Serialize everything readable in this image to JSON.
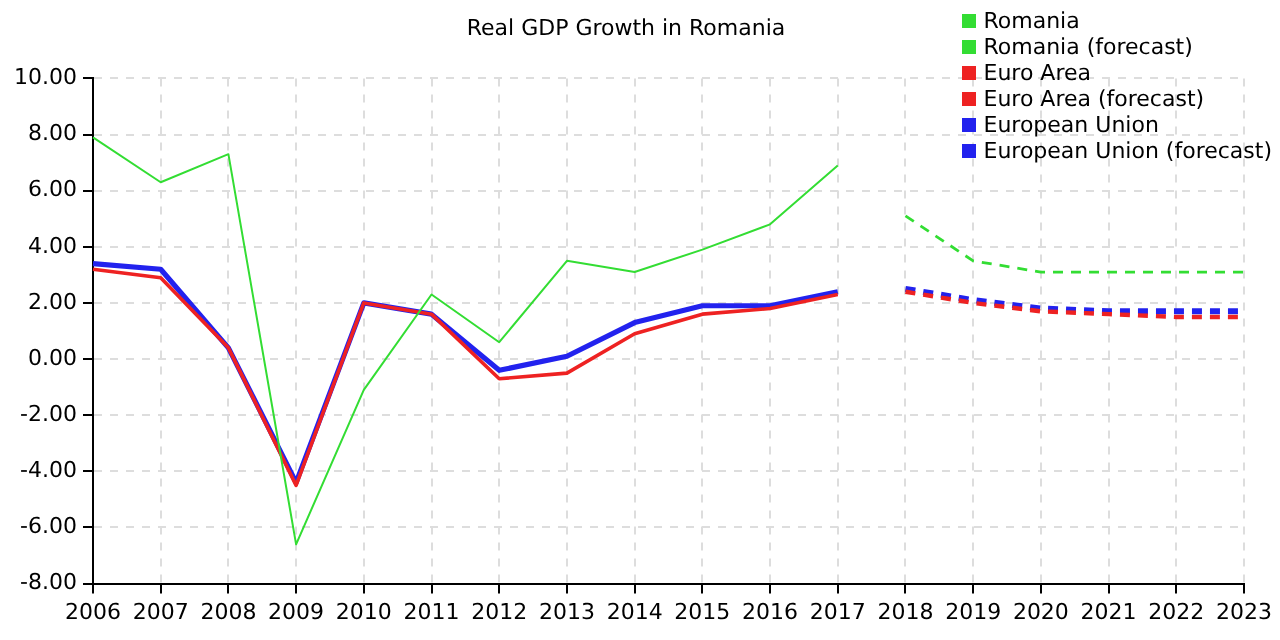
{
  "chart_data": {
    "type": "line",
    "title": "Real GDP Growth in Romania",
    "categories": [
      "2006",
      "2007",
      "2008",
      "2009",
      "2010",
      "2011",
      "2012",
      "2013",
      "2014",
      "2015",
      "2016",
      "2017",
      "2018",
      "2019",
      "2020",
      "2021",
      "2022",
      "2023"
    ],
    "series": [
      {
        "name": "Romania",
        "color": "#33dd33",
        "line_style": "solid",
        "values": [
          7.9,
          6.3,
          7.3,
          -6.6,
          -1.1,
          2.3,
          0.6,
          3.5,
          3.1,
          3.9,
          4.8,
          6.9,
          null,
          null,
          null,
          null,
          null,
          null
        ]
      },
      {
        "name": "Romania (forecast)",
        "color": "#33dd33",
        "line_style": "dashed",
        "values": [
          null,
          null,
          null,
          null,
          null,
          null,
          null,
          null,
          null,
          null,
          null,
          null,
          5.1,
          3.5,
          3.1,
          3.1,
          3.1,
          3.1
        ]
      },
      {
        "name": "Euro Area",
        "color": "#ee2222",
        "line_style": "solid",
        "values": [
          3.2,
          2.9,
          0.4,
          -4.5,
          2.0,
          1.6,
          -0.7,
          -0.5,
          0.9,
          1.6,
          1.8,
          2.3,
          null,
          null,
          null,
          null,
          null,
          null
        ]
      },
      {
        "name": "Euro Area (forecast)",
        "color": "#ee2222",
        "line_style": "dashed",
        "values": [
          null,
          null,
          null,
          null,
          null,
          null,
          null,
          null,
          null,
          null,
          null,
          null,
          2.4,
          2.0,
          1.7,
          1.6,
          1.5,
          1.5
        ]
      },
      {
        "name": "European Union",
        "color": "#2222ee",
        "line_style": "solid",
        "values": [
          3.4,
          3.2,
          0.4,
          -4.4,
          2.0,
          1.6,
          -0.4,
          0.1,
          1.3,
          1.9,
          1.9,
          2.4,
          null,
          null,
          null,
          null,
          null,
          null
        ]
      },
      {
        "name": "European Union (forecast)",
        "color": "#2222ee",
        "line_style": "dashed",
        "values": [
          null,
          null,
          null,
          null,
          null,
          null,
          null,
          null,
          null,
          null,
          null,
          null,
          2.5,
          2.1,
          1.8,
          1.7,
          1.7,
          1.7
        ]
      }
    ],
    "ylim": [
      -8,
      10
    ],
    "yticks": [
      {
        "value": -8,
        "label": "-8.00"
      },
      {
        "value": -6,
        "label": "-6.00"
      },
      {
        "value": -4,
        "label": "-4.00"
      },
      {
        "value": -2,
        "label": "-2.00"
      },
      {
        "value": 0,
        "label": "0.00"
      },
      {
        "value": 2,
        "label": "2.00"
      },
      {
        "value": 4,
        "label": "4.00"
      },
      {
        "value": 6,
        "label": "6.00"
      },
      {
        "value": 8,
        "label": "8.00"
      },
      {
        "value": 10,
        "label": "10.00"
      }
    ],
    "grid": true,
    "legend": "top right",
    "marker": "none"
  }
}
